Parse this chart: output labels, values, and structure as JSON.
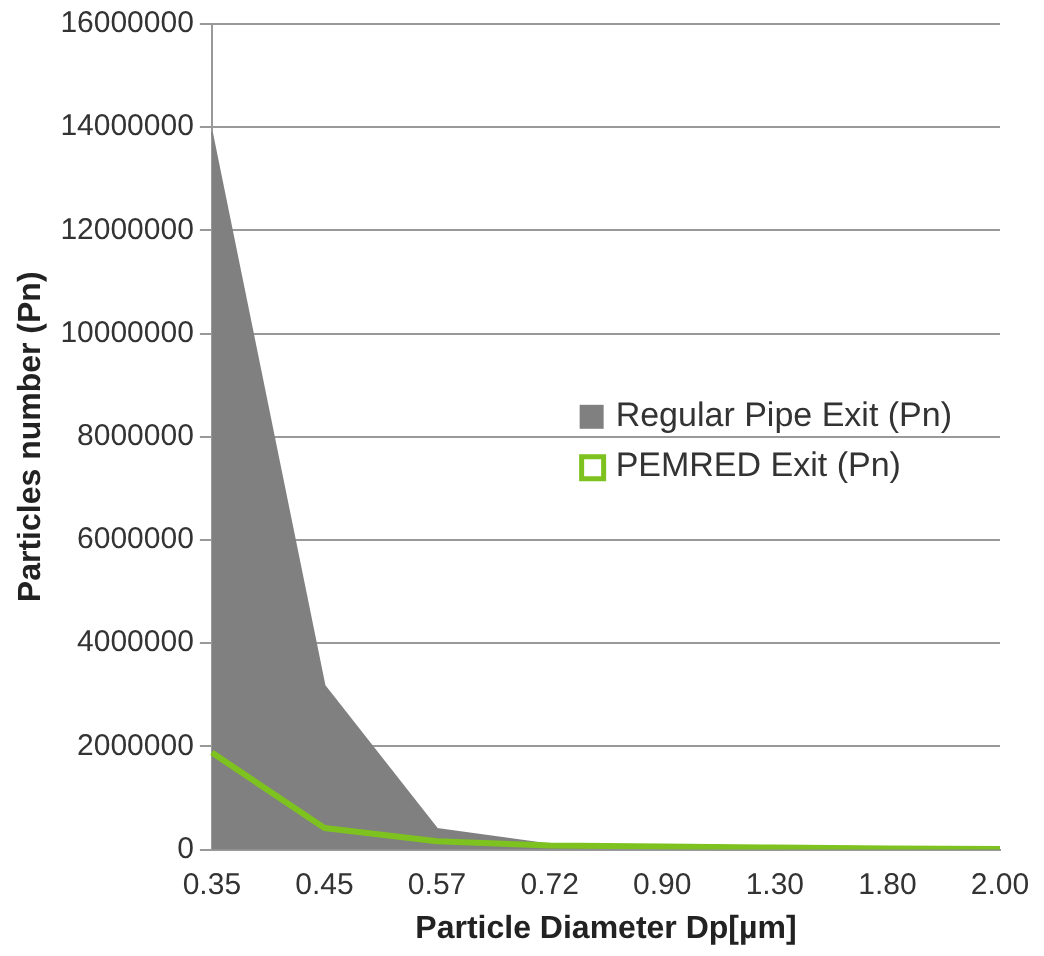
{
  "chart_data": {
    "type": "area",
    "xlabel": "Particle Diameter Dp[µm]",
    "ylabel": "Particles number (Pn)",
    "categories": [
      "0.35",
      "0.45",
      "0.57",
      "0.72",
      "0.90",
      "1.30",
      "1.80",
      "2.00"
    ],
    "series": [
      {
        "name": "Regular Pipe Exit (Pn)",
        "color": "#808080",
        "values": [
          13900000,
          3180000,
          400000,
          100000,
          50000,
          30000,
          20000,
          10000
        ]
      },
      {
        "name": "PEMRED Exit (Pn)",
        "type": "line",
        "color": "#7dc21e",
        "values": [
          1880000,
          420000,
          160000,
          80000,
          60000,
          40000,
          20000,
          10000
        ]
      }
    ],
    "ylim": [
      0,
      16000000
    ],
    "yticks": [
      0,
      2000000,
      4000000,
      6000000,
      8000000,
      10000000,
      12000000,
      14000000,
      16000000
    ],
    "grid": "y",
    "legend": "right"
  }
}
